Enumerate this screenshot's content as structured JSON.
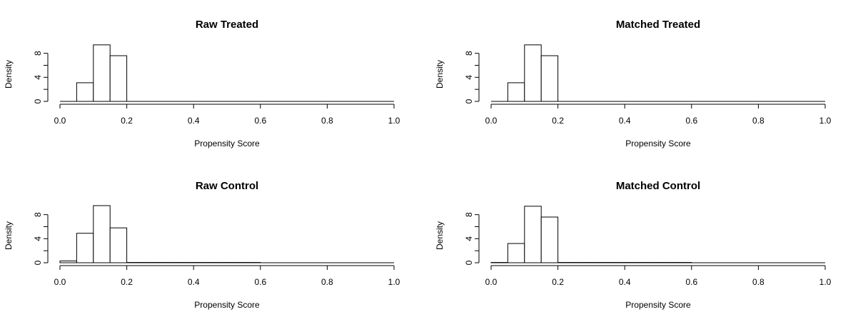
{
  "chart_data": [
    {
      "type": "bar",
      "subtype": "histogram",
      "title": "Raw Treated",
      "xlabel": "Propensity Score",
      "ylabel": "Density",
      "xlim": [
        0,
        1
      ],
      "ylim": [
        0,
        9.5
      ],
      "xticks": [
        "0.0",
        "0.2",
        "0.4",
        "0.6",
        "0.8",
        "1.0"
      ],
      "yticks": [
        "0",
        "4",
        "8"
      ],
      "bin_width": 0.05,
      "bins": [
        {
          "x0": 0.05,
          "x1": 0.1,
          "value": 3.1
        },
        {
          "x0": 0.1,
          "x1": 0.15,
          "value": 9.4
        },
        {
          "x0": 0.15,
          "x1": 0.2,
          "value": 7.6
        }
      ]
    },
    {
      "type": "bar",
      "subtype": "histogram",
      "title": "Matched Treated",
      "xlabel": "Propensity Score",
      "ylabel": "Density",
      "xlim": [
        0,
        1
      ],
      "ylim": [
        0,
        9.5
      ],
      "xticks": [
        "0.0",
        "0.2",
        "0.4",
        "0.6",
        "0.8",
        "1.0"
      ],
      "yticks": [
        "0",
        "4",
        "8"
      ],
      "bin_width": 0.05,
      "bins": [
        {
          "x0": 0.05,
          "x1": 0.1,
          "value": 3.1
        },
        {
          "x0": 0.1,
          "x1": 0.15,
          "value": 9.4
        },
        {
          "x0": 0.15,
          "x1": 0.2,
          "value": 7.6
        }
      ]
    },
    {
      "type": "bar",
      "subtype": "histogram",
      "title": "Raw Control",
      "xlabel": "Propensity Score",
      "ylabel": "Density",
      "xlim": [
        0,
        1
      ],
      "ylim": [
        0,
        9.5
      ],
      "xticks": [
        "0.0",
        "0.2",
        "0.4",
        "0.6",
        "0.8",
        "1.0"
      ],
      "yticks": [
        "0",
        "4",
        "8"
      ],
      "bin_width": 0.05,
      "bins": [
        {
          "x0": 0.0,
          "x1": 0.05,
          "value": 0.3
        },
        {
          "x0": 0.05,
          "x1": 0.1,
          "value": 4.9
        },
        {
          "x0": 0.1,
          "x1": 0.15,
          "value": 9.5
        },
        {
          "x0": 0.15,
          "x1": 0.2,
          "value": 5.8
        },
        {
          "x0": 0.2,
          "x1": 0.25,
          "value": 0.05
        },
        {
          "x0": 0.25,
          "x1": 0.3,
          "value": 0.05
        },
        {
          "x0": 0.3,
          "x1": 0.35,
          "value": 0.05
        },
        {
          "x0": 0.35,
          "x1": 0.4,
          "value": 0.05
        },
        {
          "x0": 0.4,
          "x1": 0.45,
          "value": 0.05
        },
        {
          "x0": 0.45,
          "x1": 0.5,
          "value": 0.05
        },
        {
          "x0": 0.5,
          "x1": 0.55,
          "value": 0.05
        },
        {
          "x0": 0.55,
          "x1": 0.6,
          "value": 0.05
        }
      ]
    },
    {
      "type": "bar",
      "subtype": "histogram",
      "title": "Matched Control",
      "xlabel": "Propensity Score",
      "ylabel": "Density",
      "xlim": [
        0,
        1
      ],
      "ylim": [
        0,
        9.5
      ],
      "xticks": [
        "0.0",
        "0.2",
        "0.4",
        "0.6",
        "0.8",
        "1.0"
      ],
      "yticks": [
        "0",
        "4",
        "8"
      ],
      "bin_width": 0.05,
      "bins": [
        {
          "x0": 0.0,
          "x1": 0.05,
          "value": 0.05
        },
        {
          "x0": 0.05,
          "x1": 0.1,
          "value": 3.2
        },
        {
          "x0": 0.1,
          "x1": 0.15,
          "value": 9.4
        },
        {
          "x0": 0.15,
          "x1": 0.2,
          "value": 7.6
        },
        {
          "x0": 0.2,
          "x1": 0.25,
          "value": 0.05
        },
        {
          "x0": 0.25,
          "x1": 0.3,
          "value": 0.05
        },
        {
          "x0": 0.3,
          "x1": 0.35,
          "value": 0.05
        },
        {
          "x0": 0.35,
          "x1": 0.4,
          "value": 0.05
        },
        {
          "x0": 0.4,
          "x1": 0.45,
          "value": 0.05
        },
        {
          "x0": 0.45,
          "x1": 0.5,
          "value": 0.05
        },
        {
          "x0": 0.5,
          "x1": 0.55,
          "value": 0.05
        },
        {
          "x0": 0.55,
          "x1": 0.6,
          "value": 0.05
        }
      ]
    }
  ]
}
